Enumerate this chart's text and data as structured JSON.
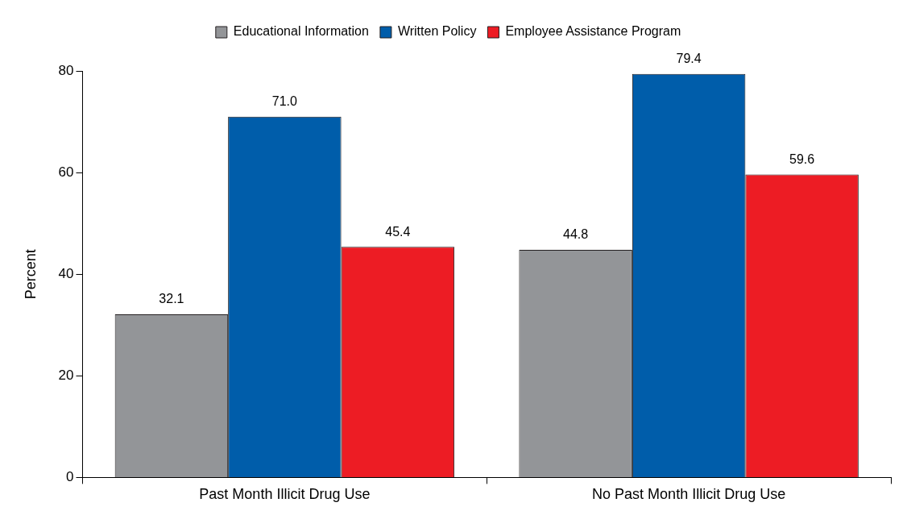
{
  "chart_data": {
    "type": "bar",
    "categories": [
      "Past Month Illicit Drug Use",
      "No Past Month Illicit Drug Use"
    ],
    "ylabel": "Percent",
    "ylim": [
      0,
      80
    ],
    "yticks": [
      0,
      20,
      40,
      60,
      80
    ],
    "grid": false,
    "legend": "top",
    "series": [
      {
        "name": "Educational Information",
        "color": "#939598",
        "values": [
          32.1,
          44.8
        ],
        "value_labels": [
          "32.1",
          "44.8"
        ]
      },
      {
        "name": "Written Policy",
        "color": "#005daa",
        "values": [
          71.0,
          79.4
        ],
        "value_labels": [
          "71.0",
          "79.4"
        ]
      },
      {
        "name": "Employee Assistance Program",
        "color": "#ed1c24",
        "values": [
          45.4,
          59.6
        ],
        "value_labels": [
          "45.4",
          "59.6"
        ]
      }
    ]
  }
}
